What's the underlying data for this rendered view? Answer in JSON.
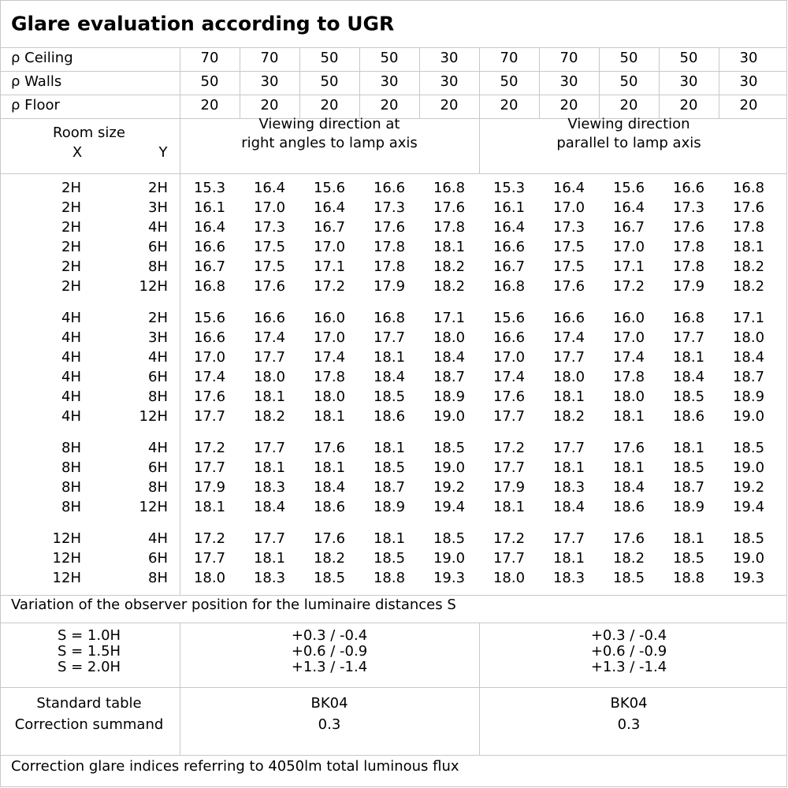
{
  "title": "Glare evaluation according to UGR",
  "reflectances": [
    {
      "label": "ρ Ceiling",
      "values": [
        "70",
        "70",
        "50",
        "50",
        "30",
        "70",
        "70",
        "50",
        "50",
        "30"
      ]
    },
    {
      "label": "ρ Walls",
      "values": [
        "50",
        "30",
        "50",
        "30",
        "30",
        "50",
        "30",
        "50",
        "30",
        "30"
      ]
    },
    {
      "label": "ρ Floor",
      "values": [
        "20",
        "20",
        "20",
        "20",
        "20",
        "20",
        "20",
        "20",
        "20",
        "20"
      ]
    }
  ],
  "room_size": {
    "label": "Room size",
    "x": "X",
    "y": "Y"
  },
  "directions": [
    [
      "Viewing direction at",
      "right angles to lamp axis"
    ],
    [
      "Viewing direction",
      "parallel to lamp axis"
    ]
  ],
  "groups": [
    [
      {
        "x": "2H",
        "y": "2H",
        "values": [
          "15.3",
          "16.4",
          "15.6",
          "16.6",
          "16.8",
          "15.3",
          "16.4",
          "15.6",
          "16.6",
          "16.8"
        ]
      },
      {
        "x": "2H",
        "y": "3H",
        "values": [
          "16.1",
          "17.0",
          "16.4",
          "17.3",
          "17.6",
          "16.1",
          "17.0",
          "16.4",
          "17.3",
          "17.6"
        ]
      },
      {
        "x": "2H",
        "y": "4H",
        "values": [
          "16.4",
          "17.3",
          "16.7",
          "17.6",
          "17.8",
          "16.4",
          "17.3",
          "16.7",
          "17.6",
          "17.8"
        ]
      },
      {
        "x": "2H",
        "y": "6H",
        "values": [
          "16.6",
          "17.5",
          "17.0",
          "17.8",
          "18.1",
          "16.6",
          "17.5",
          "17.0",
          "17.8",
          "18.1"
        ]
      },
      {
        "x": "2H",
        "y": "8H",
        "values": [
          "16.7",
          "17.5",
          "17.1",
          "17.8",
          "18.2",
          "16.7",
          "17.5",
          "17.1",
          "17.8",
          "18.2"
        ]
      },
      {
        "x": "2H",
        "y": "12H",
        "values": [
          "16.8",
          "17.6",
          "17.2",
          "17.9",
          "18.2",
          "16.8",
          "17.6",
          "17.2",
          "17.9",
          "18.2"
        ]
      }
    ],
    [
      {
        "x": "4H",
        "y": "2H",
        "values": [
          "15.6",
          "16.6",
          "16.0",
          "16.8",
          "17.1",
          "15.6",
          "16.6",
          "16.0",
          "16.8",
          "17.1"
        ]
      },
      {
        "x": "4H",
        "y": "3H",
        "values": [
          "16.6",
          "17.4",
          "17.0",
          "17.7",
          "18.0",
          "16.6",
          "17.4",
          "17.0",
          "17.7",
          "18.0"
        ]
      },
      {
        "x": "4H",
        "y": "4H",
        "values": [
          "17.0",
          "17.7",
          "17.4",
          "18.1",
          "18.4",
          "17.0",
          "17.7",
          "17.4",
          "18.1",
          "18.4"
        ]
      },
      {
        "x": "4H",
        "y": "6H",
        "values": [
          "17.4",
          "18.0",
          "17.8",
          "18.4",
          "18.7",
          "17.4",
          "18.0",
          "17.8",
          "18.4",
          "18.7"
        ]
      },
      {
        "x": "4H",
        "y": "8H",
        "values": [
          "17.6",
          "18.1",
          "18.0",
          "18.5",
          "18.9",
          "17.6",
          "18.1",
          "18.0",
          "18.5",
          "18.9"
        ]
      },
      {
        "x": "4H",
        "y": "12H",
        "values": [
          "17.7",
          "18.2",
          "18.1",
          "18.6",
          "19.0",
          "17.7",
          "18.2",
          "18.1",
          "18.6",
          "19.0"
        ]
      }
    ],
    [
      {
        "x": "8H",
        "y": "4H",
        "values": [
          "17.2",
          "17.7",
          "17.6",
          "18.1",
          "18.5",
          "17.2",
          "17.7",
          "17.6",
          "18.1",
          "18.5"
        ]
      },
      {
        "x": "8H",
        "y": "6H",
        "values": [
          "17.7",
          "18.1",
          "18.1",
          "18.5",
          "19.0",
          "17.7",
          "18.1",
          "18.1",
          "18.5",
          "19.0"
        ]
      },
      {
        "x": "8H",
        "y": "8H",
        "values": [
          "17.9",
          "18.3",
          "18.4",
          "18.7",
          "19.2",
          "17.9",
          "18.3",
          "18.4",
          "18.7",
          "19.2"
        ]
      },
      {
        "x": "8H",
        "y": "12H",
        "values": [
          "18.1",
          "18.4",
          "18.6",
          "18.9",
          "19.4",
          "18.1",
          "18.4",
          "18.6",
          "18.9",
          "19.4"
        ]
      }
    ],
    [
      {
        "x": "12H",
        "y": "4H",
        "values": [
          "17.2",
          "17.7",
          "17.6",
          "18.1",
          "18.5",
          "17.2",
          "17.7",
          "17.6",
          "18.1",
          "18.5"
        ]
      },
      {
        "x": "12H",
        "y": "6H",
        "values": [
          "17.7",
          "18.1",
          "18.2",
          "18.5",
          "19.0",
          "17.7",
          "18.1",
          "18.2",
          "18.5",
          "19.0"
        ]
      },
      {
        "x": "12H",
        "y": "8H",
        "values": [
          "18.0",
          "18.3",
          "18.5",
          "18.8",
          "19.3",
          "18.0",
          "18.3",
          "18.5",
          "18.8",
          "19.3"
        ]
      }
    ]
  ],
  "variation": {
    "title": "Variation of the observer position for the luminaire distances S",
    "rows": [
      {
        "label": "S = 1.0H",
        "left": "+0.3 / -0.4",
        "right": "+0.3 / -0.4"
      },
      {
        "label": "S = 1.5H",
        "left": "+0.6 / -0.9",
        "right": "+0.6 / -0.9"
      },
      {
        "label": "S = 2.0H",
        "left": "+1.3 / -1.4",
        "right": "+1.3 / -1.4"
      }
    ]
  },
  "standard": [
    {
      "label": "Standard table",
      "left": "BK04",
      "right": "BK04"
    },
    {
      "label": "Correction summand",
      "left": "0.3",
      "right": "0.3"
    }
  ],
  "footer": "Correction glare indices referring to 4050lm total luminous flux"
}
